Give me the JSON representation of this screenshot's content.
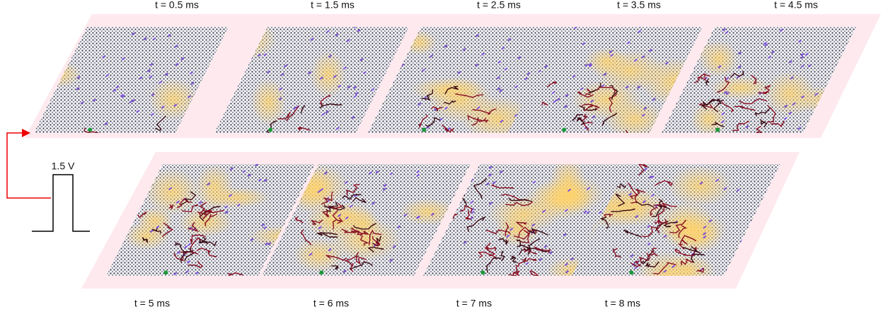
{
  "top_row": {
    "labels": [
      "t = 0.5 ms",
      "t = 1.5 ms",
      "t = 2.5 ms",
      "t = 3.5 ms",
      "t = 4.5 ms"
    ]
  },
  "bottom_row": {
    "labels": [
      "t = 5 ms",
      "t = 6 ms",
      "t = 7 ms",
      "t = 8 ms"
    ]
  },
  "pulse": {
    "label": "1.5 V"
  }
}
